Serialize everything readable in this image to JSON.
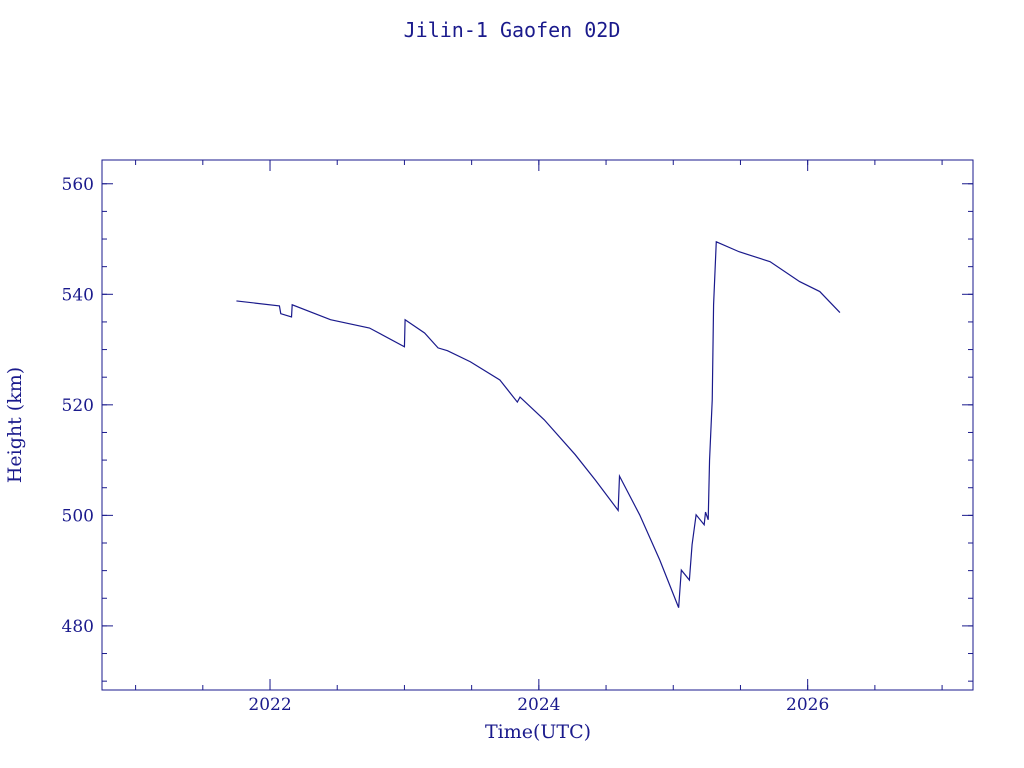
{
  "chart_data": {
    "type": "line",
    "title": "Jilin-1 Gaofen 02D",
    "xlabel": "Time(UTC)",
    "ylabel": "Height (km)",
    "color": "#1a1a8c",
    "x": [
      2021.75,
      2022.07,
      2022.08,
      2022.16,
      2022.165,
      2022.45,
      2022.74,
      2023.0,
      2023.005,
      2023.15,
      2023.25,
      2023.32,
      2023.49,
      2023.71,
      2023.84,
      2023.86,
      2024.04,
      2024.27,
      2024.42,
      2024.59,
      2024.6,
      2024.75,
      2024.9,
      2025.04,
      2025.06,
      2025.12,
      2025.14,
      2025.17,
      2025.23,
      2025.24,
      2025.26,
      2025.27,
      2025.29,
      2025.3,
      2025.32,
      2025.49,
      2025.72,
      2025.94,
      2026.09,
      2026.24
    ],
    "series": [
      {
        "name": "Height",
        "values": [
          538.8,
          537.9,
          536.5,
          535.9,
          538.1,
          535.4,
          533.9,
          530.5,
          535.4,
          533.0,
          530.3,
          529.8,
          527.8,
          524.5,
          520.5,
          521.4,
          517.3,
          511.0,
          506.4,
          500.9,
          507.1,
          500.1,
          491.9,
          483.3,
          490.1,
          488.3,
          494.7,
          500.1,
          498.3,
          500.6,
          499.2,
          510.0,
          520.9,
          538.1,
          549.5,
          547.7,
          545.9,
          542.3,
          540.5,
          536.7
        ]
      }
    ],
    "xlim": [
      2020.75,
      2027.23
    ],
    "xticks": [
      2022,
      2024,
      2026
    ],
    "ylim": [
      468.4,
      564.3
    ],
    "yticks": [
      480,
      500,
      520,
      540,
      560
    ]
  }
}
